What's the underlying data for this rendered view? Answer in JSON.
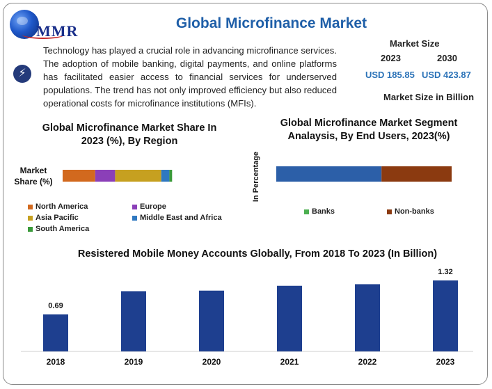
{
  "header": {
    "logo_text": "MMR",
    "title": "Global Microfinance Market"
  },
  "intro": {
    "icon": "lightning-bolt-icon",
    "text": "Technology has played a crucial role in advancing microfinance services. The adoption of mobile banking, digital payments, and online platforms has facilitated easier access to financial services for underserved populations. The trend has not only improved efficiency but also reduced operational costs for microfinance institutions (MFIs)."
  },
  "market_size": {
    "label": "Market Size",
    "year_a": "2023",
    "year_b": "2030",
    "value_a": "USD 185.85",
    "value_b": "USD 423.87",
    "unit_note": "Market Size in Billion"
  },
  "colors": {
    "title_blue": "#1f5fa8",
    "value_blue": "#2c73b8",
    "bar_navy": "#1e3f8f"
  },
  "chart_data": [
    {
      "type": "bar",
      "orientation": "horizontal-stacked",
      "title": "Global Microfinance Market Share In 2023 (%), By Region",
      "ylabel": "Market Share (%)",
      "categories": [
        "Market Share (%)"
      ],
      "series": [
        {
          "name": "North America",
          "color": "#d2691e",
          "values": [
            18
          ]
        },
        {
          "name": "Europe",
          "color": "#8b3fb8",
          "values": [
            11
          ]
        },
        {
          "name": "Asia Pacific",
          "color": "#c6a020",
          "values": [
            25.5
          ]
        },
        {
          "name": "Middle East and Africa",
          "color": "#2f78c0",
          "values": [
            4.5
          ]
        },
        {
          "name": "South America",
          "color": "#3a9a3a",
          "values": [
            1.5
          ]
        }
      ]
    },
    {
      "type": "bar",
      "orientation": "horizontal-stacked",
      "title": "Global Microfinance Market Segment Analaysis, By End Users, 2023(%)",
      "ylabel": "In Percentage",
      "categories": [
        ""
      ],
      "series": [
        {
          "name": "Banks",
          "color": "#2c5fa8",
          "legend_color": "#4caf50",
          "values": [
            60
          ]
        },
        {
          "name": "Non-banks",
          "color": "#8b3a10",
          "values": [
            40
          ]
        }
      ]
    },
    {
      "type": "bar",
      "title": "Resistered Mobile Money Accounts Globally, From 2018 To 2023 (In Billion)",
      "categories": [
        "2018",
        "2019",
        "2020",
        "2021",
        "2022",
        "2023"
      ],
      "values": [
        0.69,
        1.12,
        1.13,
        1.22,
        1.25,
        1.32
      ],
      "data_labels": {
        "2018": "0.69",
        "2023": "1.32"
      },
      "ylim": [
        0,
        1.32
      ],
      "color": "#1e3f8f"
    }
  ]
}
